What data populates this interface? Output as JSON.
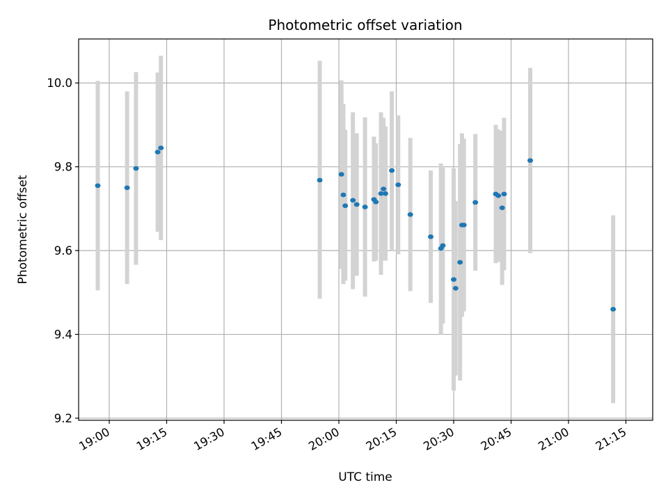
{
  "chart_data": {
    "type": "scatter",
    "title": "Photometric offset variation",
    "xlabel": "UTC time",
    "ylabel": "Photometric offset",
    "x_ticks": [
      "19:00",
      "19:15",
      "19:30",
      "19:45",
      "20:00",
      "20:15",
      "20:30",
      "20:45",
      "21:00",
      "21:15"
    ],
    "y_ticks": [
      "9.2",
      "9.4",
      "9.6",
      "9.8",
      "10.0"
    ],
    "xlim": [
      "18:52:00",
      "21:22:00"
    ],
    "ylim": [
      9.195,
      10.105
    ],
    "grid": true,
    "colors": {
      "points": "#1f77b4",
      "errorbars": "#d3d3d3",
      "grid": "#b0b0b0"
    },
    "points": [
      {
        "x": "18:57:00",
        "y": 9.755,
        "low": 9.505,
        "high": 10.005
      },
      {
        "x": "19:04:40",
        "y": 9.75,
        "low": 9.52,
        "high": 9.98
      },
      {
        "x": "19:07:00",
        "y": 9.796,
        "low": 9.566,
        "high": 10.026
      },
      {
        "x": "19:12:40",
        "y": 9.835,
        "low": 9.645,
        "high": 10.025
      },
      {
        "x": "19:13:30",
        "y": 9.845,
        "low": 9.625,
        "high": 10.065
      },
      {
        "x": "19:55:00",
        "y": 9.768,
        "low": 9.485,
        "high": 10.053
      },
      {
        "x": "20:00:40",
        "y": 9.782,
        "low": 9.556,
        "high": 10.006
      },
      {
        "x": "20:01:10",
        "y": 9.733,
        "low": 9.52,
        "high": 9.95
      },
      {
        "x": "20:01:40",
        "y": 9.707,
        "low": 9.528,
        "high": 9.888
      },
      {
        "x": "20:03:40",
        "y": 9.72,
        "low": 9.508,
        "high": 9.93
      },
      {
        "x": "20:04:40",
        "y": 9.71,
        "low": 9.54,
        "high": 9.88
      },
      {
        "x": "20:06:50",
        "y": 9.704,
        "low": 9.49,
        "high": 9.918
      },
      {
        "x": "20:09:10",
        "y": 9.722,
        "low": 9.574,
        "high": 9.872
      },
      {
        "x": "20:09:40",
        "y": 9.716,
        "low": 9.576,
        "high": 9.856
      },
      {
        "x": "20:11:00",
        "y": 9.736,
        "low": 9.542,
        "high": 9.93
      },
      {
        "x": "20:11:40",
        "y": 9.747,
        "low": 9.577,
        "high": 9.917
      },
      {
        "x": "20:12:10",
        "y": 9.736,
        "low": 9.576,
        "high": 9.896
      },
      {
        "x": "20:13:50",
        "y": 9.791,
        "low": 9.602,
        "high": 9.98
      },
      {
        "x": "20:15:30",
        "y": 9.757,
        "low": 9.591,
        "high": 9.923
      },
      {
        "x": "20:18:40",
        "y": 9.686,
        "low": 9.503,
        "high": 9.869
      },
      {
        "x": "20:24:00",
        "y": 9.633,
        "low": 9.475,
        "high": 9.791
      },
      {
        "x": "20:26:40",
        "y": 9.605,
        "low": 9.4,
        "high": 9.808
      },
      {
        "x": "20:27:10",
        "y": 9.612,
        "low": 9.426,
        "high": 9.798
      },
      {
        "x": "20:30:00",
        "y": 9.531,
        "low": 9.266,
        "high": 9.796
      },
      {
        "x": "20:30:30",
        "y": 9.51,
        "low": 9.302,
        "high": 9.718
      },
      {
        "x": "20:31:40",
        "y": 9.572,
        "low": 9.29,
        "high": 9.854
      },
      {
        "x": "20:32:10",
        "y": 9.661,
        "low": 9.442,
        "high": 9.88
      },
      {
        "x": "20:32:40",
        "y": 9.661,
        "low": 9.455,
        "high": 9.867
      },
      {
        "x": "20:35:40",
        "y": 9.715,
        "low": 9.552,
        "high": 9.878
      },
      {
        "x": "20:41:00",
        "y": 9.735,
        "low": 9.57,
        "high": 9.9
      },
      {
        "x": "20:41:40",
        "y": 9.731,
        "low": 9.573,
        "high": 9.889
      },
      {
        "x": "20:42:40",
        "y": 9.702,
        "low": 9.518,
        "high": 9.886
      },
      {
        "x": "20:43:10",
        "y": 9.735,
        "low": 9.553,
        "high": 9.917
      },
      {
        "x": "20:50:00",
        "y": 9.815,
        "low": 9.594,
        "high": 10.036
      },
      {
        "x": "21:11:40",
        "y": 9.46,
        "low": 9.236,
        "high": 9.684
      }
    ]
  }
}
